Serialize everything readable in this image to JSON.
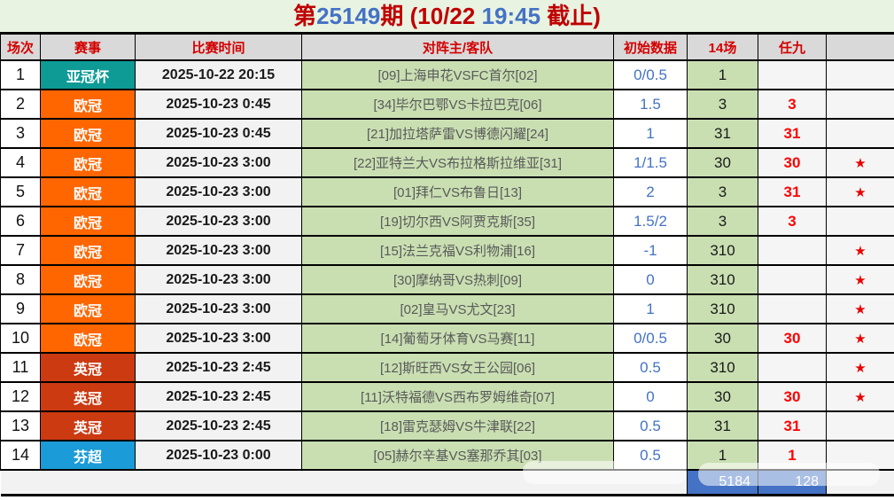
{
  "title": {
    "prefix": "第",
    "issue_no": "25149",
    "suffix": "期",
    "deadline_pre": " (10/22 ",
    "deadline_time": "19:45",
    "deadline_post": " 截止)"
  },
  "header": {
    "cols": [
      "场次",
      "赛事",
      "比赛时间",
      "对阵主/客队",
      "初始数据",
      "14场",
      "任九",
      ""
    ]
  },
  "colors": {
    "league": {
      "亚冠杯": "#0e9b96",
      "欧冠": "#ff6600",
      "英冠": "#cc3a12",
      "芬超": "#1b9bd7"
    },
    "title_red": "#c00000",
    "title_blue": "#4472c4",
    "header_red": "#d40000",
    "odds_blue": "#4472c4",
    "r9_red": "#ff0000",
    "footer_blue": "#4472c4"
  },
  "icons": {
    "star": "★"
  },
  "table": {
    "rows": [
      {
        "no": "1",
        "league": "亚冠杯",
        "time": "2025-10-22 20:15",
        "match": "[09]上海申花VSFC首尔[02]",
        "odds": "0/0.5",
        "c14": "1",
        "r9": "",
        "star": false
      },
      {
        "no": "2",
        "league": "欧冠",
        "time": "2025-10-23 0:45",
        "match": "[34]毕尔巴鄂VS卡拉巴克[06]",
        "odds": "1.5",
        "c14": "3",
        "r9": "3",
        "star": false
      },
      {
        "no": "3",
        "league": "欧冠",
        "time": "2025-10-23 0:45",
        "match": "[21]加拉塔萨雷VS博德闪耀[24]",
        "odds": "1",
        "c14": "31",
        "r9": "31",
        "star": false
      },
      {
        "no": "4",
        "league": "欧冠",
        "time": "2025-10-23 3:00",
        "match": "[22]亚特兰大VS布拉格斯拉维亚[31]",
        "odds": "1/1.5",
        "c14": "30",
        "r9": "30",
        "star": true
      },
      {
        "no": "5",
        "league": "欧冠",
        "time": "2025-10-23 3:00",
        "match": "[01]拜仁VS布鲁日[13]",
        "odds": "2",
        "c14": "3",
        "r9": "31",
        "star": true
      },
      {
        "no": "6",
        "league": "欧冠",
        "time": "2025-10-23 3:00",
        "match": "[19]切尔西VS阿贾克斯[35]",
        "odds": "1.5/2",
        "c14": "3",
        "r9": "3",
        "star": false
      },
      {
        "no": "7",
        "league": "欧冠",
        "time": "2025-10-23 3:00",
        "match": "[15]法兰克福VS利物浦[16]",
        "odds": "-1",
        "c14": "310",
        "r9": "",
        "star": true
      },
      {
        "no": "8",
        "league": "欧冠",
        "time": "2025-10-23 3:00",
        "match": "[30]摩纳哥VS热刺[09]",
        "odds": "0",
        "c14": "310",
        "r9": "",
        "star": true
      },
      {
        "no": "9",
        "league": "欧冠",
        "time": "2025-10-23 3:00",
        "match": "[02]皇马VS尤文[23]",
        "odds": "1",
        "c14": "310",
        "r9": "",
        "star": true
      },
      {
        "no": "10",
        "league": "欧冠",
        "time": "2025-10-23 3:00",
        "match": "[14]葡萄牙体育VS马赛[11]",
        "odds": "0/0.5",
        "c14": "30",
        "r9": "30",
        "star": true
      },
      {
        "no": "11",
        "league": "英冠",
        "time": "2025-10-23 2:45",
        "match": "[12]斯旺西VS女王公园[06]",
        "odds": "0.5",
        "c14": "310",
        "r9": "",
        "star": true
      },
      {
        "no": "12",
        "league": "英冠",
        "time": "2025-10-23 2:45",
        "match": "[11]沃特福德VS西布罗姆维奇[07]",
        "odds": "0",
        "c14": "30",
        "r9": "30",
        "star": true
      },
      {
        "no": "13",
        "league": "英冠",
        "time": "2025-10-23 2:45",
        "match": "[18]雷克瑟姆VS牛津联[22]",
        "odds": "0.5",
        "c14": "31",
        "r9": "31",
        "star": false
      },
      {
        "no": "14",
        "league": "芬超",
        "time": "2025-10-23 0:00",
        "match": "[05]赫尔辛基VS塞那乔其[03]",
        "odds": "0.5",
        "c14": "1",
        "r9": "1",
        "star": false
      }
    ]
  },
  "footer": {
    "total_14": "5184",
    "total_r9": "128"
  }
}
